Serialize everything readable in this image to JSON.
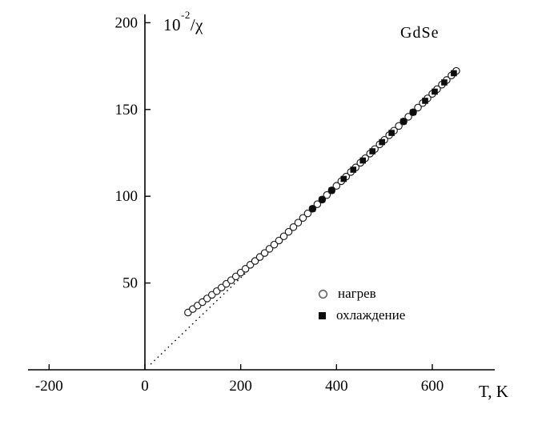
{
  "figure": {
    "title": "GdSe",
    "xlabel": "T, K",
    "ylabel_prefix": "10",
    "ylabel_exponent": "-2",
    "ylabel_suffix": "/χ"
  },
  "legend": {
    "items": [
      {
        "label": "нагрев",
        "marker": "open-circle"
      },
      {
        "label": "охлаждение",
        "marker": "filled-square"
      }
    ]
  },
  "chart_data": {
    "type": "scatter",
    "title": "GdSe",
    "xlabel": "T, K",
    "ylabel": "10⁻²/χ",
    "xlim": [
      -250,
      730
    ],
    "ylim": [
      0,
      205
    ],
    "x_ticks": [
      -200,
      0,
      200,
      400,
      600
    ],
    "y_ticks": [
      50,
      100,
      150,
      200
    ],
    "grid": false,
    "legend_position": "inside lower right",
    "fit_line": {
      "style": "dotted",
      "from": [
        12,
        3.2
      ],
      "to": [
        272,
        72.1
      ]
    },
    "series": [
      {
        "name": "нагрев",
        "marker": "open-circle",
        "points": [
          [
            90,
            33
          ],
          [
            100,
            35
          ],
          [
            110,
            37
          ],
          [
            120,
            39
          ],
          [
            130,
            41.1
          ],
          [
            140,
            43.2
          ],
          [
            150,
            45.3
          ],
          [
            160,
            47.4
          ],
          [
            170,
            49.5
          ],
          [
            180,
            51.6
          ],
          [
            190,
            53.8
          ],
          [
            200,
            56
          ],
          [
            210,
            58.2
          ],
          [
            220,
            60.5
          ],
          [
            230,
            62.7
          ],
          [
            240,
            65
          ],
          [
            250,
            67.3
          ],
          [
            260,
            69.7
          ],
          [
            270,
            72.1
          ],
          [
            280,
            74.5
          ],
          [
            290,
            76.9
          ],
          [
            300,
            79.5
          ],
          [
            310,
            82.2
          ],
          [
            320,
            84.8
          ],
          [
            330,
            87.5
          ],
          [
            340,
            90.1
          ],
          [
            350,
            92.8
          ],
          [
            360,
            95.4
          ],
          [
            370,
            98.1
          ],
          [
            380,
            100.7
          ],
          [
            390,
            103.4
          ],
          [
            400,
            106
          ],
          [
            410,
            108.7
          ],
          [
            420,
            111.3
          ],
          [
            430,
            114
          ],
          [
            440,
            116.6
          ],
          [
            450,
            119.3
          ],
          [
            460,
            121.9
          ],
          [
            470,
            124.6
          ],
          [
            480,
            127.2
          ],
          [
            490,
            129.9
          ],
          [
            500,
            132.5
          ],
          [
            510,
            135.2
          ],
          [
            520,
            137.8
          ],
          [
            530,
            140.5
          ],
          [
            540,
            143.1
          ],
          [
            550,
            145.8
          ],
          [
            560,
            148.4
          ],
          [
            570,
            151.1
          ],
          [
            580,
            153.7
          ],
          [
            590,
            156.4
          ],
          [
            600,
            159
          ],
          [
            610,
            161.7
          ],
          [
            620,
            164.3
          ],
          [
            630,
            167
          ],
          [
            640,
            169.6
          ],
          [
            650,
            172.2
          ]
        ]
      },
      {
        "name": "охлаждение",
        "marker": "filled-square",
        "points": [
          [
            350,
            92.8
          ],
          [
            370,
            98.1
          ],
          [
            390,
            103.4
          ],
          [
            415,
            110
          ],
          [
            435,
            115.3
          ],
          [
            455,
            120.6
          ],
          [
            475,
            125.9
          ],
          [
            495,
            131.2
          ],
          [
            515,
            136.5
          ],
          [
            540,
            143.1
          ],
          [
            560,
            148.4
          ],
          [
            585,
            155
          ],
          [
            605,
            160.3
          ],
          [
            625,
            165.6
          ],
          [
            645,
            170.9
          ]
        ]
      }
    ]
  }
}
